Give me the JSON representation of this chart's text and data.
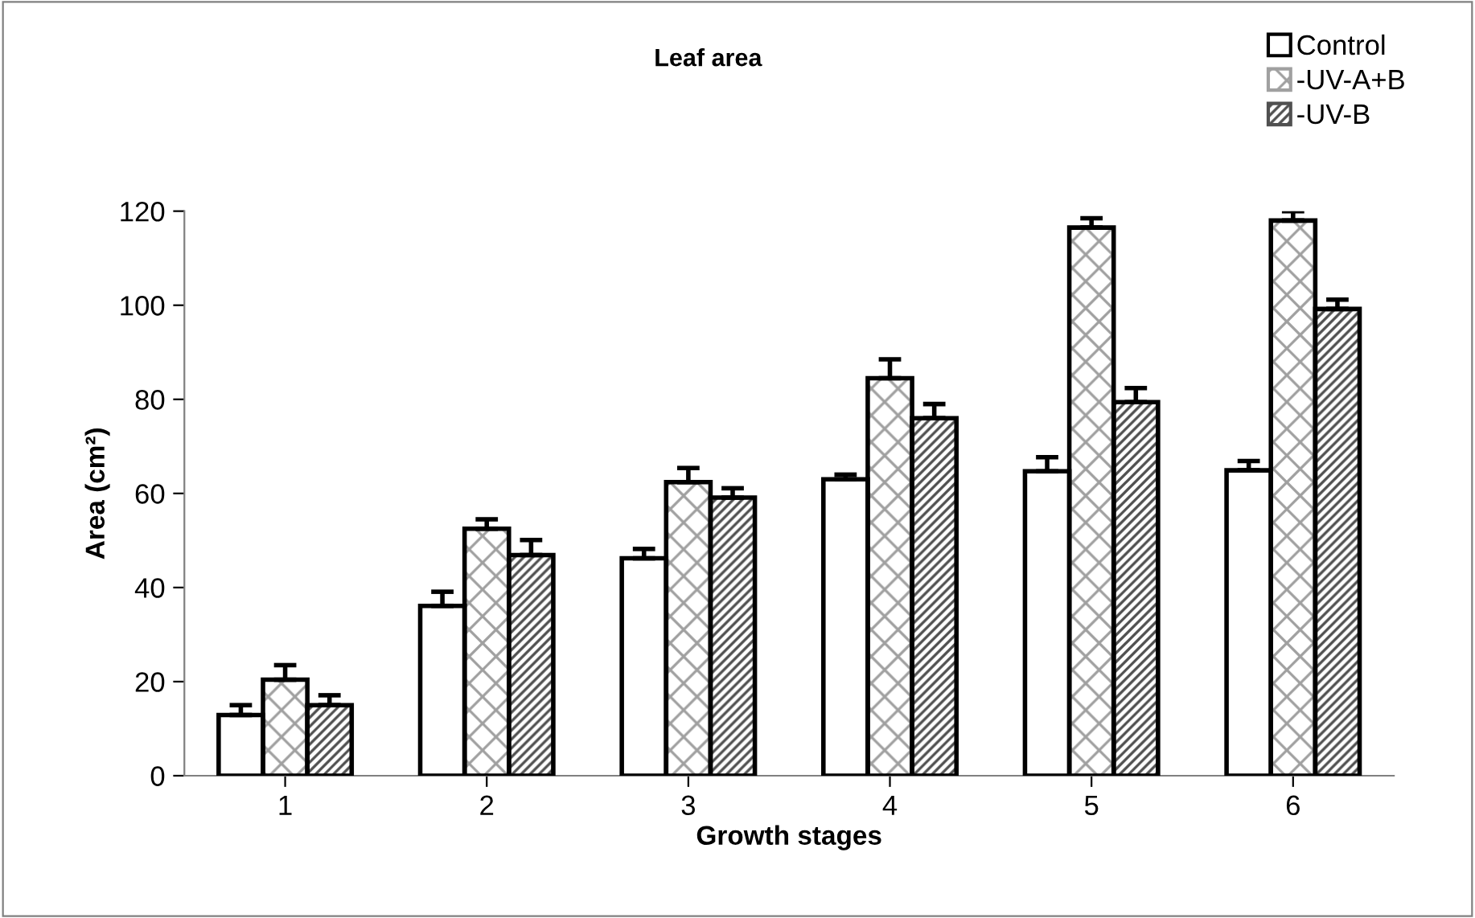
{
  "chart_data": {
    "type": "bar",
    "title": "Leaf area",
    "xlabel": "Growth stages",
    "ylabel": "Area (cm²)",
    "categories": [
      "1",
      "2",
      "3",
      "4",
      "5",
      "6"
    ],
    "series": [
      {
        "name": "Control",
        "color": "#000000",
        "values": [
          12.9,
          36.1,
          46.2,
          63.0,
          64.7,
          64.9
        ],
        "errors": [
          2.1,
          3.0,
          2.0,
          1.0,
          3.0,
          2.0
        ]
      },
      {
        "name": "-UV-A+B",
        "color": "#a0a0a0",
        "values": [
          20.4,
          52.5,
          62.4,
          84.5,
          116.5,
          118.0
        ],
        "errors": [
          3.1,
          2.0,
          3.0,
          4.0,
          2.0,
          2.0
        ]
      },
      {
        "name": "-UV-B",
        "color": "#505050",
        "values": [
          15.0,
          46.9,
          59.1,
          76.0,
          79.4,
          99.2
        ],
        "errors": [
          2.1,
          3.2,
          2.0,
          3.0,
          3.0,
          2.0
        ]
      }
    ],
    "ylim": [
      0,
      120
    ],
    "yticks": [
      0,
      20,
      40,
      60,
      80,
      100,
      120
    ],
    "grid": false,
    "legend": "top right"
  }
}
